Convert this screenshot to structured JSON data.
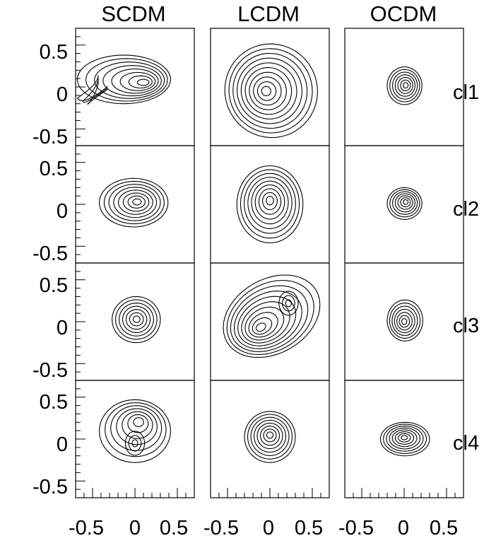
{
  "figure": {
    "columns": [
      "SCDM",
      "LCDM",
      "OCDM"
    ],
    "rows": [
      "cl1",
      "cl2",
      "cl3",
      "cl4"
    ],
    "y_tick_labels": [
      "0.5",
      "0",
      "-0.5"
    ],
    "x_tick_labels": [
      "-0.5",
      "0",
      "0.5"
    ]
  },
  "chart_data": {
    "type": "contour",
    "layout": "4 rows x 3 columns grid of contour panels",
    "xlim": [
      -0.7,
      0.7
    ],
    "ylim": [
      -0.7,
      0.7
    ],
    "x_major_ticks": [
      -0.5,
      0,
      0.5
    ],
    "y_major_ticks": [
      -0.5,
      0,
      0.5
    ],
    "grid": false,
    "line_color": "#000000",
    "panels": [
      {
        "row": "cl1",
        "column": "SCDM",
        "levels": 8,
        "peaks": [
          [
            0.13,
            0.05
          ]
        ],
        "extent_x": [
          -0.68,
          0.42
        ],
        "extent_y": [
          -0.2,
          0.38
        ],
        "tail": {
          "direction": "lower-left",
          "to": [
            -0.68,
            -0.15
          ]
        }
      },
      {
        "row": "cl1",
        "column": "LCDM",
        "levels": 10,
        "peaks": [
          [
            -0.05,
            -0.05
          ]
        ],
        "extent_x": [
          -0.55,
          0.58
        ],
        "extent_y": [
          -0.62,
          0.53
        ],
        "tilt_deg": 28
      },
      {
        "row": "cl1",
        "column": "OCDM",
        "levels": 7,
        "peaks": [
          [
            0.02,
            0.02
          ]
        ],
        "extent_x": [
          -0.2,
          0.21
        ],
        "extent_y": [
          -0.21,
          0.24
        ]
      },
      {
        "row": "cl2",
        "column": "SCDM",
        "levels": 8,
        "peaks": [
          [
            0.03,
            0.03
          ]
        ],
        "extent_x": [
          -0.42,
          0.39
        ],
        "extent_y": [
          -0.27,
          0.31
        ]
      },
      {
        "row": "cl2",
        "column": "LCDM",
        "levels": 9,
        "peaks": [
          [
            0.0,
            0.05
          ]
        ],
        "extent_x": [
          -0.39,
          0.39
        ],
        "extent_y": [
          -0.46,
          0.46
        ]
      },
      {
        "row": "cl2",
        "column": "OCDM",
        "levels": 7,
        "peaks": [
          [
            0.02,
            0.03
          ]
        ],
        "extent_x": [
          -0.2,
          0.21
        ],
        "extent_y": [
          -0.18,
          0.2
        ]
      },
      {
        "row": "cl3",
        "column": "SCDM",
        "levels": 7,
        "peaks": [
          [
            0.02,
            0.03
          ]
        ],
        "extent_x": [
          -0.27,
          0.3
        ],
        "extent_y": [
          -0.25,
          0.3
        ]
      },
      {
        "row": "cl3",
        "column": "LCDM",
        "levels": 10,
        "peaks": [
          [
            -0.12,
            -0.08
          ],
          [
            0.22,
            0.22
          ]
        ],
        "extent_x": [
          -0.58,
          0.62
        ],
        "extent_y": [
          -0.42,
          0.55
        ],
        "tilt_deg": 30
      },
      {
        "row": "cl3",
        "column": "OCDM",
        "levels": 7,
        "peaks": [
          [
            0.0,
            0.0
          ]
        ],
        "extent_x": [
          -0.2,
          0.22
        ],
        "extent_y": [
          -0.23,
          0.26
        ]
      },
      {
        "row": "cl4",
        "column": "SCDM",
        "levels": 7,
        "peaks": [
          [
            0.05,
            0.22
          ],
          [
            0.0,
            -0.05
          ]
        ],
        "extent_x": [
          -0.42,
          0.42
        ],
        "extent_y": [
          -0.28,
          0.47
        ]
      },
      {
        "row": "cl4",
        "column": "LCDM",
        "levels": 8,
        "peaks": [
          [
            0.0,
            0.05
          ]
        ],
        "extent_x": [
          -0.3,
          0.3
        ],
        "extent_y": [
          -0.28,
          0.33
        ]
      },
      {
        "row": "cl4",
        "column": "OCDM",
        "levels": 8,
        "peaks": [
          [
            0.0,
            0.02
          ]
        ],
        "extent_x": [
          -0.28,
          0.3
        ],
        "extent_y": [
          -0.2,
          0.2
        ]
      }
    ]
  }
}
